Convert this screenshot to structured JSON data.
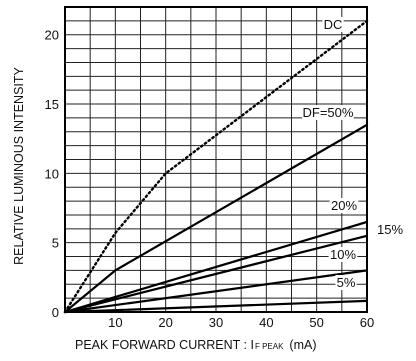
{
  "chart_data": {
    "type": "line",
    "xlabel": "PEAK FORWARD CURRENT : I",
    "xlabel_sub": "F PEAK",
    "xlabel_unit": "(mA)",
    "ylabel": "RELATIVE LUMINOUS INTENSITY",
    "xlim": [
      0,
      60
    ],
    "ylim": [
      0,
      22
    ],
    "x_ticks": [
      10,
      20,
      30,
      40,
      50,
      60
    ],
    "y_ticks": [
      0,
      5,
      10,
      15,
      20
    ],
    "x_minor_step": 5,
    "y_minor_step": 1,
    "grid": true,
    "series": [
      {
        "name": "DC",
        "style": "dotted",
        "x": [
          0,
          10,
          20,
          40,
          60
        ],
        "y": [
          0,
          5.7,
          10,
          15.5,
          21
        ]
      },
      {
        "name": "DF=50%",
        "style": "solid",
        "x": [
          0,
          10,
          60
        ],
        "y": [
          0,
          3,
          13.5
        ]
      },
      {
        "name": "20%",
        "style": "solid",
        "x": [
          0,
          60
        ],
        "y": [
          0,
          6.5
        ]
      },
      {
        "name": "15%",
        "style": "solid",
        "x": [
          0,
          60
        ],
        "y": [
          0,
          5.5
        ]
      },
      {
        "name": "10%",
        "style": "solid",
        "x": [
          0,
          60
        ],
        "y": [
          0,
          3
        ]
      },
      {
        "name": "5%",
        "style": "solid",
        "x": [
          0,
          60
        ],
        "y": [
          0,
          0.8
        ]
      }
    ],
    "annotations": [
      "DC",
      "DF=50%",
      "20%",
      "15%",
      "10%",
      "5%"
    ]
  }
}
